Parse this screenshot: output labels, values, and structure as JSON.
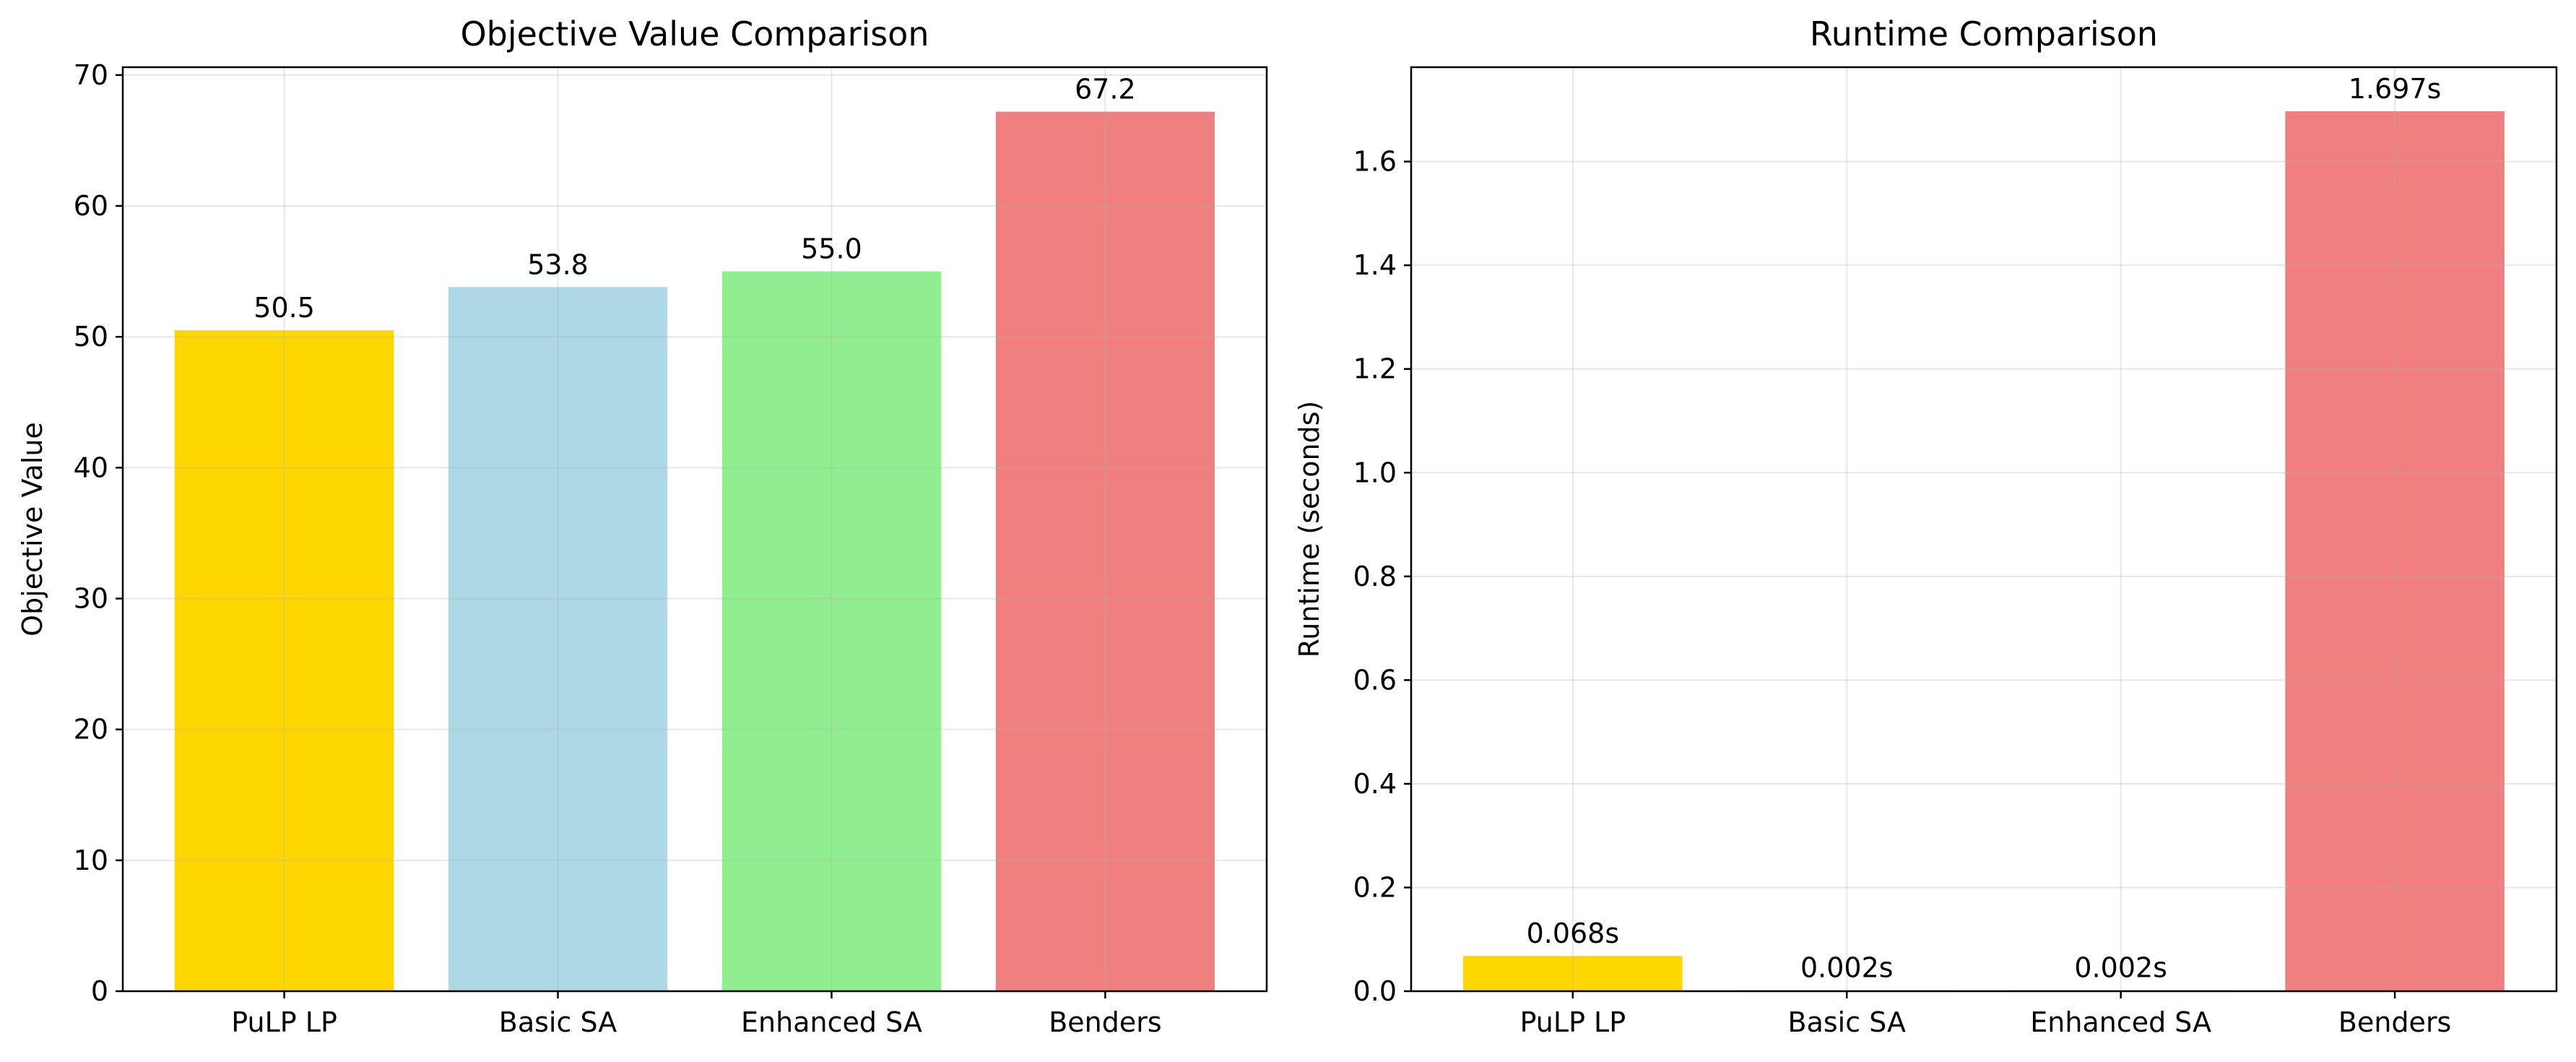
{
  "chart_data": [
    {
      "type": "bar",
      "title": "Objective Value Comparison",
      "xlabel": "",
      "ylabel": "Objective Value",
      "categories": [
        "PuLP LP",
        "Basic SA",
        "Enhanced SA",
        "Benders"
      ],
      "values": [
        50.5,
        53.8,
        55.0,
        67.2
      ],
      "value_labels": [
        "50.5",
        "53.8",
        "55.0",
        "67.2"
      ],
      "colors": [
        "#ffd700",
        "#add8e6",
        "#90ee90",
        "#f08080"
      ],
      "ylim": [
        0,
        70.6
      ],
      "yticks": [
        0,
        10,
        20,
        30,
        40,
        50,
        60,
        70
      ],
      "ytick_labels": [
        "0",
        "10",
        "20",
        "30",
        "40",
        "50",
        "60",
        "70"
      ],
      "grid": true,
      "legend": "none"
    },
    {
      "type": "bar",
      "title": "Runtime Comparison",
      "xlabel": "",
      "ylabel": "Runtime (seconds)",
      "categories": [
        "PuLP LP",
        "Basic SA",
        "Enhanced SA",
        "Benders"
      ],
      "values": [
        0.068,
        0.002,
        0.002,
        1.697
      ],
      "value_labels": [
        "0.068s",
        "0.002s",
        "0.002s",
        "1.697s"
      ],
      "colors": [
        "#ffd700",
        "#add8e6",
        "#90ee90",
        "#f08080"
      ],
      "ylim": [
        0,
        1.782
      ],
      "yticks": [
        0.0,
        0.2,
        0.4,
        0.6,
        0.8,
        1.0,
        1.2,
        1.4,
        1.6
      ],
      "ytick_labels": [
        "0.0",
        "0.2",
        "0.4",
        "0.6",
        "0.8",
        "1.0",
        "1.2",
        "1.4",
        "1.6"
      ],
      "grid": true,
      "legend": "none"
    }
  ]
}
